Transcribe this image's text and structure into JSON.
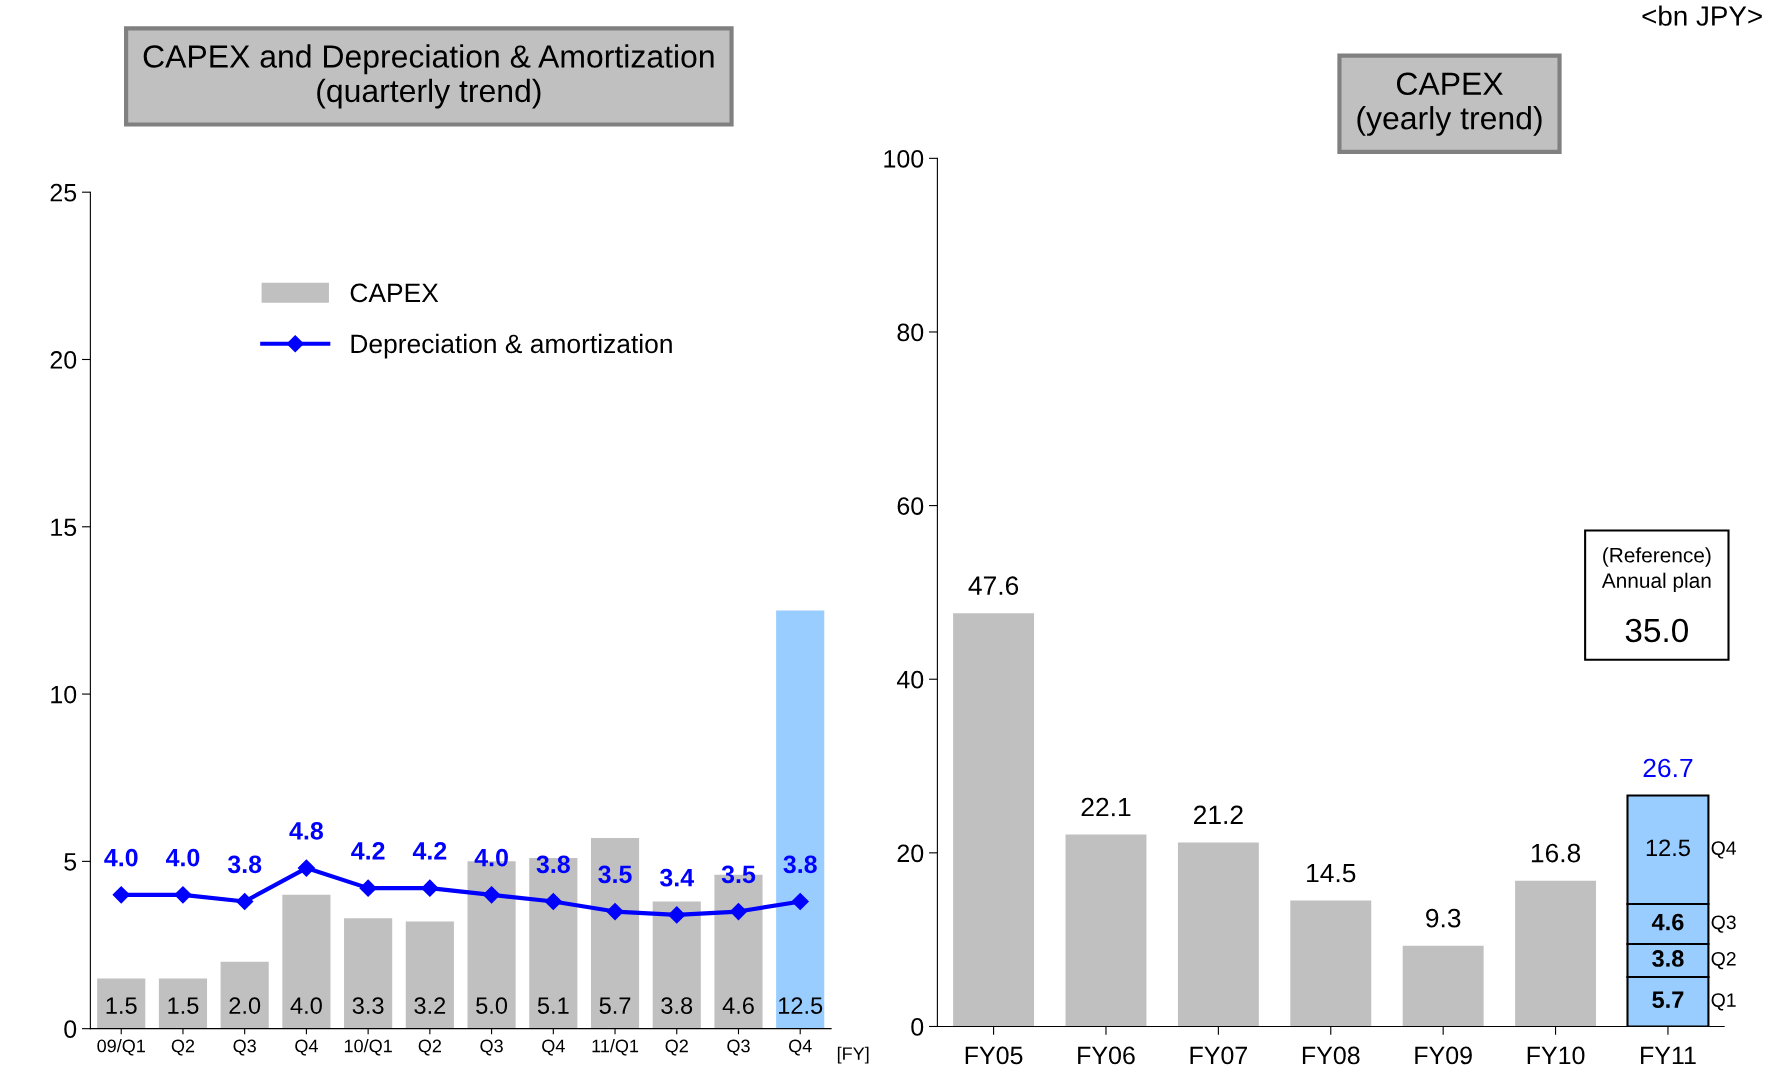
{
  "chart_data": [
    {
      "type": "bar",
      "title": "CAPEX and Depreciation & Amortization\n(quarterly trend)",
      "xlabel": "[FY]",
      "categories": [
        "09/Q1",
        "Q2",
        "Q3",
        "Q4",
        "10/Q1",
        "Q2",
        "Q3",
        "Q4",
        "11/Q1",
        "Q2",
        "Q3",
        "Q4"
      ],
      "series": [
        {
          "name": "CAPEX",
          "type": "bar",
          "colors": [
            "#c0c0c0",
            "#c0c0c0",
            "#c0c0c0",
            "#c0c0c0",
            "#c0c0c0",
            "#c0c0c0",
            "#c0c0c0",
            "#c0c0c0",
            "#c0c0c0",
            "#c0c0c0",
            "#c0c0c0",
            "#99ccff"
          ],
          "values": [
            1.5,
            1.5,
            2.0,
            4.0,
            3.3,
            3.2,
            5.0,
            5.1,
            5.7,
            3.8,
            4.6,
            12.5
          ],
          "value_labels": [
            "1.5",
            "1.5",
            "2.0",
            "4.0",
            "3.3",
            "3.2",
            "5.0",
            "5.1",
            "5.7",
            "3.8",
            "4.6",
            "12.5"
          ]
        },
        {
          "name": "Depreciation & amortization",
          "type": "line",
          "color": "#0000ff",
          "values": [
            4.0,
            4.0,
            3.8,
            4.8,
            4.2,
            4.2,
            4.0,
            3.8,
            3.5,
            3.4,
            3.5,
            3.8
          ],
          "value_labels": [
            "4.0",
            "4.0",
            "3.8",
            "4.8",
            "4.2",
            "4.2",
            "4.0",
            "3.8",
            "3.5",
            "3.4",
            "3.5",
            "3.8"
          ]
        }
      ],
      "marker": "diamond",
      "ylim": [
        0,
        25
      ],
      "yticks": [
        0,
        5,
        10,
        15,
        20,
        25
      ],
      "legend": "top left",
      "grid": false
    },
    {
      "type": "bar",
      "stacked": true,
      "title": "CAPEX\n(yearly trend)",
      "categories": [
        "FY05",
        "FY06",
        "FY07",
        "FY08",
        "FY09",
        "FY10",
        "FY11"
      ],
      "series": [
        {
          "color": "#c0c0c0",
          "values": [
            47.6,
            22.1,
            21.2,
            14.5,
            9.3,
            16.8,
            null
          ]
        },
        {
          "name": "Q1",
          "color": "#99ccff",
          "values": [
            null,
            null,
            null,
            null,
            null,
            null,
            5.7
          ]
        },
        {
          "name": "Q2",
          "color": "#99ccff",
          "values": [
            null,
            null,
            null,
            null,
            null,
            null,
            3.8
          ]
        },
        {
          "name": "Q3",
          "color": "#99ccff",
          "values": [
            null,
            null,
            null,
            null,
            null,
            null,
            4.6
          ]
        },
        {
          "name": "Q4",
          "color": "#99ccff",
          "values": [
            null,
            null,
            null,
            null,
            null,
            null,
            12.5
          ]
        }
      ],
      "totals": [
        null,
        null,
        null,
        null,
        null,
        null,
        "26.7"
      ],
      "annotations": [
        "<bn JPY>",
        "(Reference)\nAnnual plan\n35.0"
      ],
      "ylim": [
        0,
        100
      ],
      "yticks": [
        0,
        20,
        40,
        60,
        80,
        100
      ],
      "data_labels": true,
      "grid": false
    }
  ]
}
